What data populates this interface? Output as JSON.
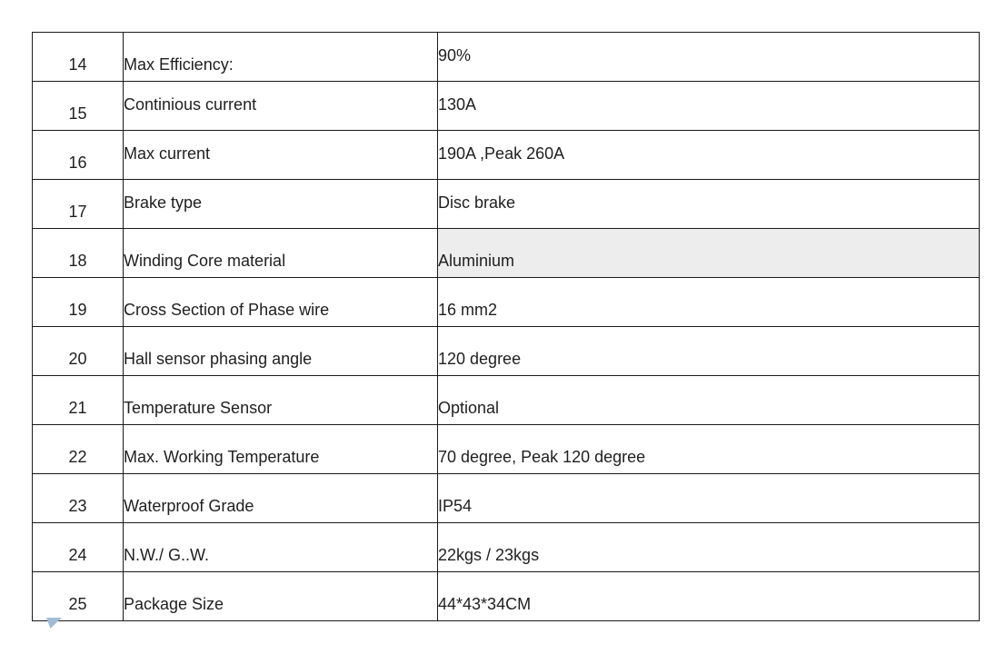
{
  "table": {
    "highlight_color": "#ededed",
    "rows": [
      {
        "no": "14",
        "label": "Max Efficiency:",
        "value": "90%"
      },
      {
        "no": "15",
        "label": "Continious current",
        "value": "130A"
      },
      {
        "no": "16",
        "label": "Max current",
        "value": "190A ,Peak 260A"
      },
      {
        "no": "17",
        "label": "Brake type",
        "value": "Disc brake"
      },
      {
        "no": "18",
        "label": "Winding Core material",
        "value": "Aluminium",
        "value_highlighted": true
      },
      {
        "no": "19",
        "label": "Cross Section of Phase wire",
        "value": "16 mm2"
      },
      {
        "no": "20",
        "label": "Hall sensor phasing angle",
        "value": "120 degree"
      },
      {
        "no": "21",
        "label": "Temperature Sensor",
        "value": "Optional"
      },
      {
        "no": "22",
        "label": "Max. Working Temperature",
        "value": "70 degree, Peak 120 degree"
      },
      {
        "no": "23",
        "label": "Waterproof Grade",
        "value": "IP54"
      },
      {
        "no": "24",
        "label": "N.W./ G..W.",
        "value": "22kgs / 23kgs"
      },
      {
        "no": "25",
        "label": "Package Size",
        "value": "44*43*34CM"
      }
    ]
  },
  "decorations": {
    "corner_triangle_color": "#a3bcd6"
  }
}
